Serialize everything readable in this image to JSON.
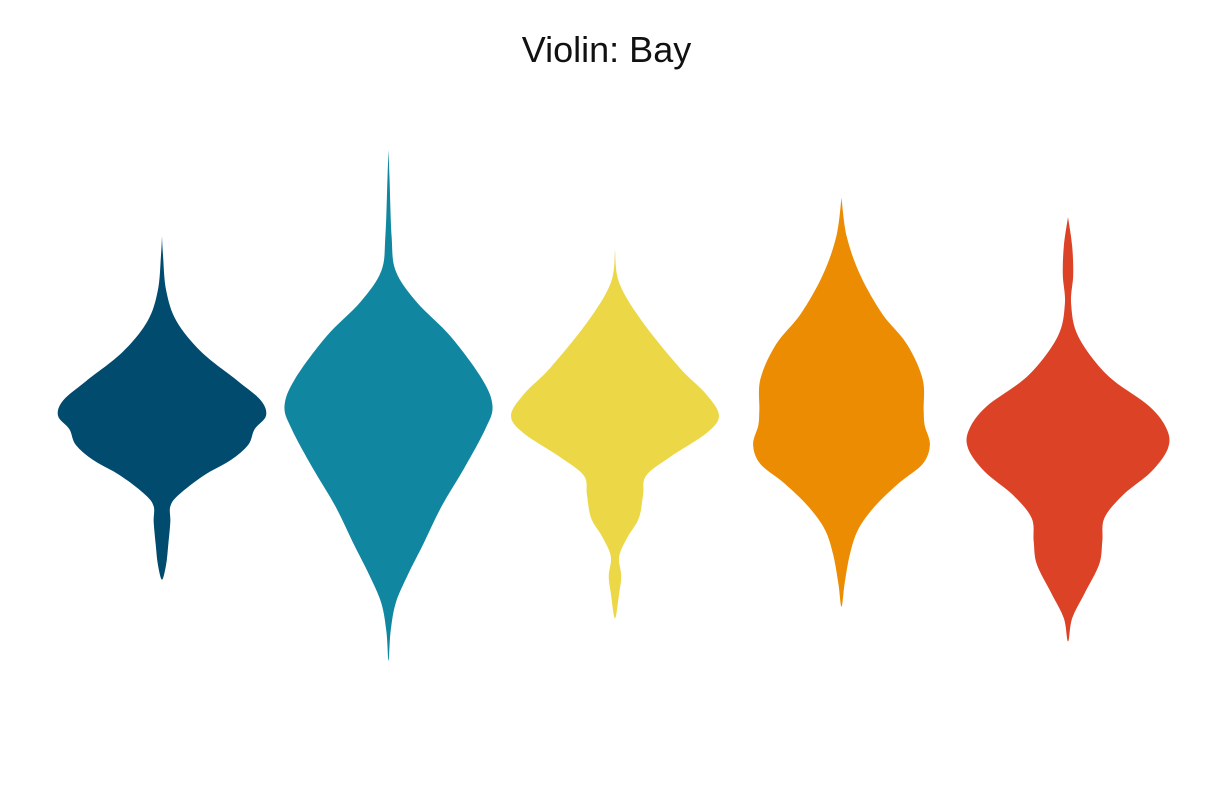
{
  "chart_data": {
    "type": "violin",
    "title": "Violin: Bay",
    "xlabel": "",
    "ylabel": "",
    "grid": false,
    "axes_visible": false,
    "ylim": [
      -1.4,
      1.4
    ],
    "series": [
      {
        "color": "#004B6E",
        "profile": [
          [
            0.9,
            0.0
          ],
          [
            0.8,
            0.01
          ],
          [
            0.62,
            0.04
          ],
          [
            0.46,
            0.14
          ],
          [
            0.3,
            0.38
          ],
          [
            0.15,
            0.73
          ],
          [
            0.05,
            0.95
          ],
          [
            -0.03,
            1.0
          ],
          [
            -0.1,
            0.89
          ],
          [
            -0.18,
            0.83
          ],
          [
            -0.26,
            0.66
          ],
          [
            -0.34,
            0.4
          ],
          [
            -0.44,
            0.16
          ],
          [
            -0.5,
            0.08
          ],
          [
            -0.58,
            0.08
          ],
          [
            -0.7,
            0.06
          ],
          [
            -0.8,
            0.04
          ],
          [
            -0.88,
            0.0
          ]
        ]
      },
      {
        "color": "#1186A0",
        "profile": [
          [
            1.35,
            0.0
          ],
          [
            1.2,
            0.01
          ],
          [
            0.9,
            0.03
          ],
          [
            0.72,
            0.07
          ],
          [
            0.56,
            0.27
          ],
          [
            0.38,
            0.6
          ],
          [
            0.16,
            0.9
          ],
          [
            0.02,
            1.0
          ],
          [
            -0.1,
            0.93
          ],
          [
            -0.3,
            0.73
          ],
          [
            -0.5,
            0.51
          ],
          [
            -0.7,
            0.33
          ],
          [
            -0.85,
            0.19
          ],
          [
            -1.0,
            0.07
          ],
          [
            -1.15,
            0.02
          ],
          [
            -1.3,
            0.0
          ]
        ]
      },
      {
        "color": "#ECD747",
        "profile": [
          [
            0.83,
            0.0
          ],
          [
            0.66,
            0.04
          ],
          [
            0.46,
            0.26
          ],
          [
            0.22,
            0.62
          ],
          [
            0.08,
            0.88
          ],
          [
            -0.03,
            1.0
          ],
          [
            -0.12,
            0.88
          ],
          [
            -0.24,
            0.54
          ],
          [
            -0.34,
            0.3
          ],
          [
            -0.44,
            0.27
          ],
          [
            -0.56,
            0.23
          ],
          [
            -0.66,
            0.12
          ],
          [
            -0.76,
            0.04
          ],
          [
            -0.86,
            0.06
          ],
          [
            -0.95,
            0.04
          ],
          [
            -1.08,
            0.0
          ]
        ]
      },
      {
        "color": "#EC8C02",
        "profile": [
          [
            1.1,
            0.0
          ],
          [
            0.9,
            0.05
          ],
          [
            0.7,
            0.18
          ],
          [
            0.5,
            0.39
          ],
          [
            0.34,
            0.63
          ],
          [
            0.16,
            0.78
          ],
          [
            0.0,
            0.79
          ],
          [
            -0.08,
            0.8
          ],
          [
            -0.18,
            0.85
          ],
          [
            -0.28,
            0.78
          ],
          [
            -0.38,
            0.55
          ],
          [
            -0.5,
            0.32
          ],
          [
            -0.62,
            0.16
          ],
          [
            -0.75,
            0.08
          ],
          [
            -0.9,
            0.03
          ],
          [
            -1.02,
            0.0
          ]
        ]
      },
      {
        "color": "#DC4226",
        "profile": [
          [
            1.0,
            0.0
          ],
          [
            0.85,
            0.04
          ],
          [
            0.7,
            0.05
          ],
          [
            0.55,
            0.03
          ],
          [
            0.38,
            0.1
          ],
          [
            0.18,
            0.38
          ],
          [
            0.02,
            0.78
          ],
          [
            -0.1,
            0.95
          ],
          [
            -0.2,
            0.96
          ],
          [
            -0.32,
            0.8
          ],
          [
            -0.44,
            0.53
          ],
          [
            -0.56,
            0.35
          ],
          [
            -0.68,
            0.33
          ],
          [
            -0.8,
            0.3
          ],
          [
            -0.95,
            0.16
          ],
          [
            -1.08,
            0.04
          ],
          [
            -1.2,
            0.0
          ]
        ]
      }
    ]
  }
}
